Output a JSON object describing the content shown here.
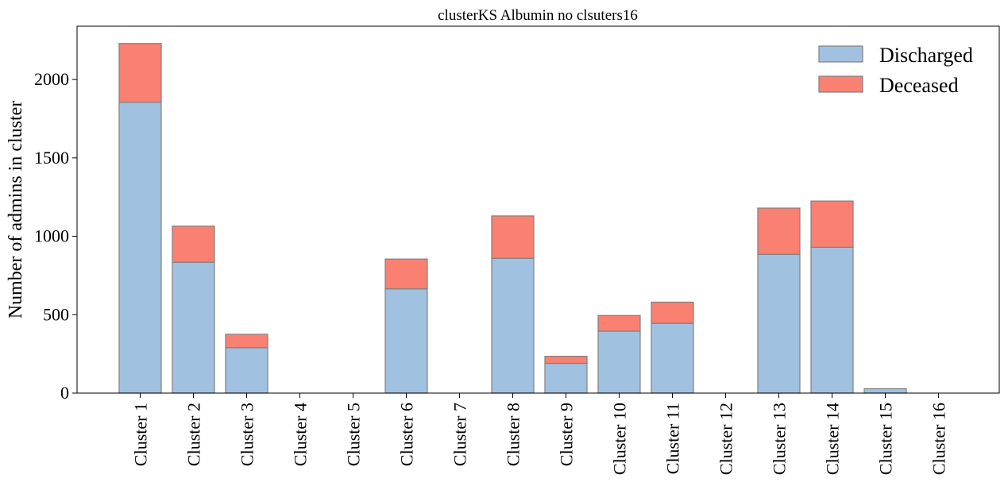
{
  "chart_data": {
    "type": "bar",
    "stacked": true,
    "title": "clusterKS Albumin no clsuters16",
    "xlabel": "",
    "ylabel": "Number of admins in cluster",
    "ylim": [
      0,
      2340
    ],
    "yticks": [
      0,
      500,
      1000,
      1500,
      2000
    ],
    "legend_position": "top-right",
    "categories": [
      "Cluster 1",
      "Cluster 2",
      "Cluster 3",
      "Cluster 4",
      "Cluster 5",
      "Cluster 6",
      "Cluster 7",
      "Cluster 8",
      "Cluster 9",
      "Cluster 10",
      "Cluster 11",
      "Cluster 12",
      "Cluster 13",
      "Cluster 14",
      "Cluster 15",
      "Cluster 16"
    ],
    "series": [
      {
        "name": "Discharged",
        "color": "#a0c1e0",
        "values": [
          1855,
          835,
          290,
          0,
          0,
          665,
          0,
          860,
          190,
          395,
          445,
          0,
          885,
          930,
          28,
          0
        ]
      },
      {
        "name": "Deceased",
        "color": "#fa8072",
        "values": [
          375,
          230,
          85,
          0,
          0,
          190,
          0,
          270,
          45,
          100,
          135,
          0,
          295,
          295,
          0,
          0
        ]
      }
    ],
    "edge_color": "#808080"
  }
}
